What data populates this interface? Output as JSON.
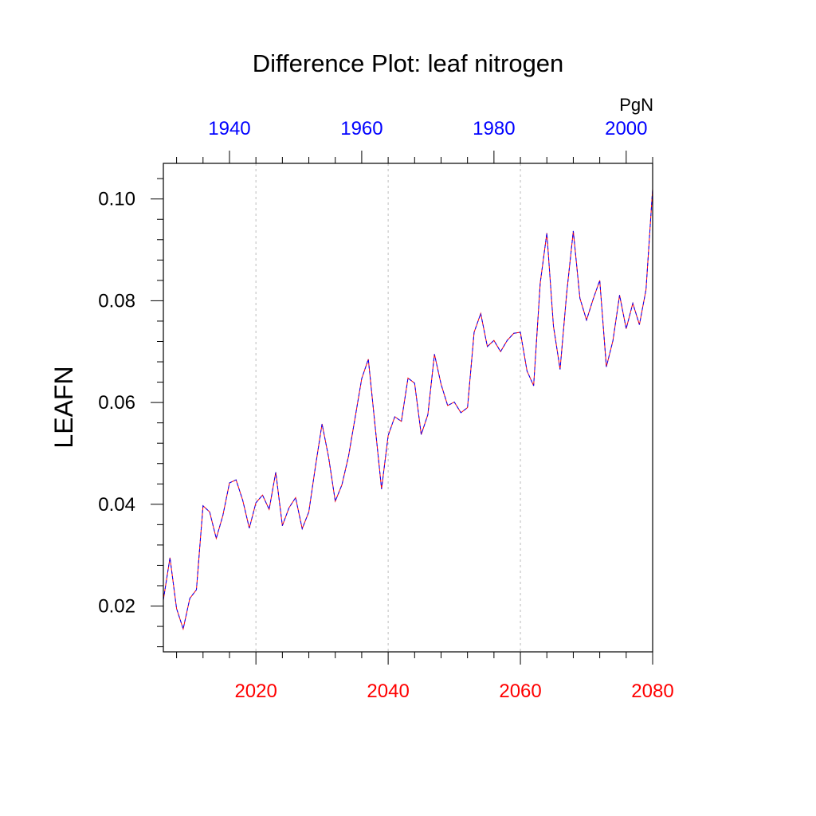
{
  "chart_data": {
    "type": "line",
    "title": "Difference Plot: leaf nitrogen",
    "ylabel": "LEAFN",
    "units_label": "PgN",
    "ylim": [
      0.011,
      0.107
    ],
    "yticks": [
      0.02,
      0.04,
      0.06,
      0.08,
      0.1
    ],
    "ytick_labels": [
      "0.02",
      "0.04",
      "0.06",
      "0.08",
      "0.10"
    ],
    "bottom_axis": {
      "color": "#ff0000",
      "xlim": [
        2006,
        2080
      ],
      "ticks": [
        2020,
        2040,
        2060,
        2080
      ],
      "tick_labels": [
        "2020",
        "2040",
        "2060",
        "2080"
      ]
    },
    "top_axis": {
      "color": "#0000ff",
      "xlim": [
        1930,
        2004
      ],
      "ticks": [
        1940,
        1960,
        1980,
        2000
      ],
      "tick_labels": [
        "1940",
        "1960",
        "1980",
        "2000"
      ]
    },
    "grid": "vertical dotted at major bottom ticks",
    "series": [
      {
        "color": "#ff0000",
        "style": "solid",
        "x_axis": "bottom",
        "x": [
          2006,
          2007,
          2008,
          2009,
          2010,
          2011,
          2012,
          2013,
          2014,
          2015,
          2016,
          2017,
          2018,
          2019,
          2020,
          2021,
          2022,
          2023,
          2024,
          2025,
          2026,
          2027,
          2028,
          2029,
          2030,
          2031,
          2032,
          2033,
          2034,
          2035,
          2036,
          2037,
          2038,
          2039,
          2040,
          2041,
          2042,
          2043,
          2044,
          2045,
          2046,
          2047,
          2048,
          2049,
          2050,
          2051,
          2052,
          2053,
          2054,
          2055,
          2056,
          2057,
          2058,
          2059,
          2060,
          2061,
          2062,
          2063,
          2064,
          2065,
          2066,
          2067,
          2068,
          2069,
          2070,
          2071,
          2072,
          2073,
          2074,
          2075,
          2076,
          2077,
          2078,
          2079,
          2080
        ],
        "y": [
          0.0212,
          0.0295,
          0.0195,
          0.0155,
          0.0215,
          0.0232,
          0.0397,
          0.0385,
          0.0333,
          0.0378,
          0.0442,
          0.0448,
          0.0408,
          0.0353,
          0.0403,
          0.0418,
          0.039,
          0.0463,
          0.0358,
          0.0393,
          0.0413,
          0.0352,
          0.0385,
          0.0474,
          0.0558,
          0.0492,
          0.0406,
          0.0438,
          0.0494,
          0.057,
          0.0647,
          0.0685,
          0.0557,
          0.043,
          0.0535,
          0.0572,
          0.0563,
          0.0648,
          0.0638,
          0.0537,
          0.0576,
          0.0695,
          0.0636,
          0.0594,
          0.0601,
          0.058,
          0.059,
          0.0738,
          0.0775,
          0.071,
          0.0722,
          0.07,
          0.0722,
          0.0736,
          0.0738,
          0.0662,
          0.0633,
          0.0835,
          0.0933,
          0.075,
          0.0665,
          0.0815,
          0.0937,
          0.0805,
          0.0762,
          0.0803,
          0.084,
          0.067,
          0.0722,
          0.0811,
          0.0745,
          0.0795,
          0.0753,
          0.0822,
          0.102
        ]
      },
      {
        "color": "#0000ff",
        "style": "dashed",
        "x_axis": "top",
        "x": [
          1930,
          1931,
          1932,
          1933,
          1934,
          1935,
          1936,
          1937,
          1938,
          1939,
          1940,
          1941,
          1942,
          1943,
          1944,
          1945,
          1946,
          1947,
          1948,
          1949,
          1950,
          1951,
          1952,
          1953,
          1954,
          1955,
          1956,
          1957,
          1958,
          1959,
          1960,
          1961,
          1962,
          1963,
          1964,
          1965,
          1966,
          1967,
          1968,
          1969,
          1970,
          1971,
          1972,
          1973,
          1974,
          1975,
          1976,
          1977,
          1978,
          1979,
          1980,
          1981,
          1982,
          1983,
          1984,
          1985,
          1986,
          1987,
          1988,
          1989,
          1990,
          1991,
          1992,
          1993,
          1994,
          1995,
          1996,
          1997,
          1998,
          1999,
          2000,
          2001,
          2002,
          2003,
          2004
        ],
        "y": [
          0.0212,
          0.0295,
          0.0195,
          0.0155,
          0.0215,
          0.0232,
          0.0397,
          0.0385,
          0.0333,
          0.0378,
          0.0442,
          0.0448,
          0.0408,
          0.0353,
          0.0403,
          0.0418,
          0.039,
          0.0463,
          0.0358,
          0.0393,
          0.0413,
          0.0352,
          0.0385,
          0.0474,
          0.0558,
          0.0492,
          0.0406,
          0.0438,
          0.0494,
          0.057,
          0.0647,
          0.0685,
          0.0557,
          0.043,
          0.0535,
          0.0572,
          0.0563,
          0.0648,
          0.0638,
          0.0537,
          0.0576,
          0.0695,
          0.0636,
          0.0594,
          0.0601,
          0.058,
          0.059,
          0.0738,
          0.0775,
          0.071,
          0.0722,
          0.07,
          0.0722,
          0.0736,
          0.0738,
          0.0662,
          0.0633,
          0.0835,
          0.0933,
          0.075,
          0.0665,
          0.0815,
          0.0937,
          0.0805,
          0.0762,
          0.0803,
          0.084,
          0.067,
          0.0722,
          0.0811,
          0.0745,
          0.0795,
          0.0753,
          0.0822,
          0.102
        ]
      }
    ]
  }
}
